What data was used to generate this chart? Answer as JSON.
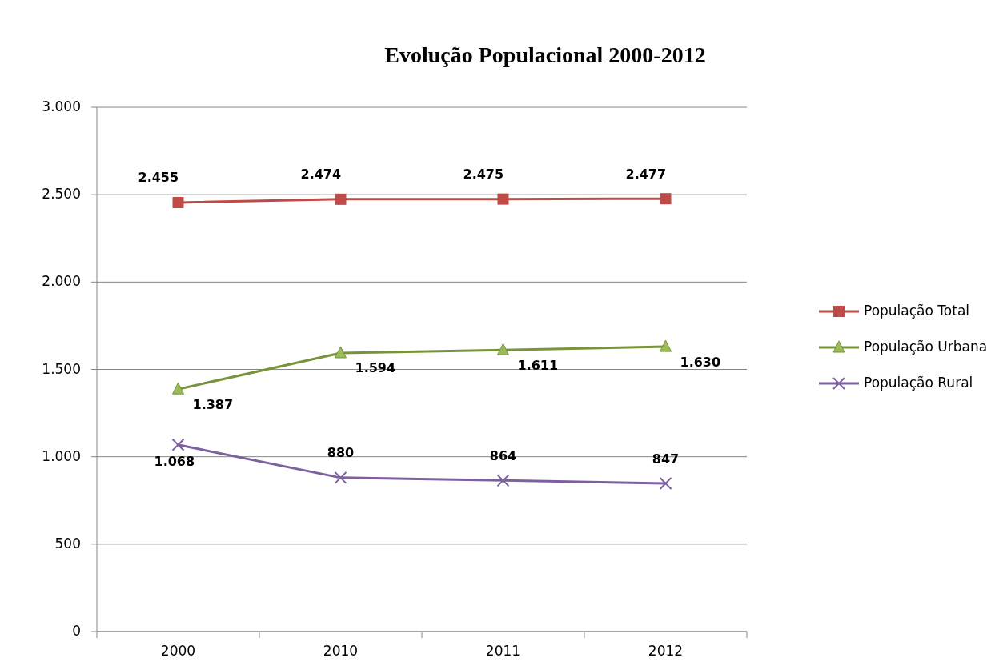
{
  "chart_data": {
    "type": "line",
    "title": "Evolução Populacional 2000-2012",
    "categories": [
      "2000",
      "2010",
      "2011",
      "2012"
    ],
    "series": [
      {
        "name": "População Total",
        "color": "#be4b48",
        "marker": "square",
        "values": [
          2455,
          2474,
          2475,
          2477
        ],
        "value_labels": [
          "2.455",
          "2.474",
          "2.475",
          "2.477"
        ]
      },
      {
        "name": "População Urbana",
        "color": "#77933c",
        "marker": "triangle",
        "values": [
          1387,
          1594,
          1611,
          1630
        ],
        "value_labels": [
          "1.387",
          "1.594",
          "1.611",
          "1.630"
        ]
      },
      {
        "name": "População Rural",
        "color": "#7d60a0",
        "marker": "cross",
        "values": [
          1068,
          880,
          864,
          847
        ],
        "value_labels": [
          "1.068",
          "880",
          "864",
          "847"
        ]
      }
    ],
    "ylim": [
      0,
      3000
    ],
    "yticks": [
      {
        "value": 0,
        "label": "0"
      },
      {
        "value": 500,
        "label": "500"
      },
      {
        "value": 1000,
        "label": "1.000"
      },
      {
        "value": 1500,
        "label": "1.500"
      },
      {
        "value": 2000,
        "label": "2.000"
      },
      {
        "value": 2500,
        "label": "2.500"
      },
      {
        "value": 3000,
        "label": "3.000"
      }
    ],
    "grid": "y",
    "legend": "right"
  }
}
